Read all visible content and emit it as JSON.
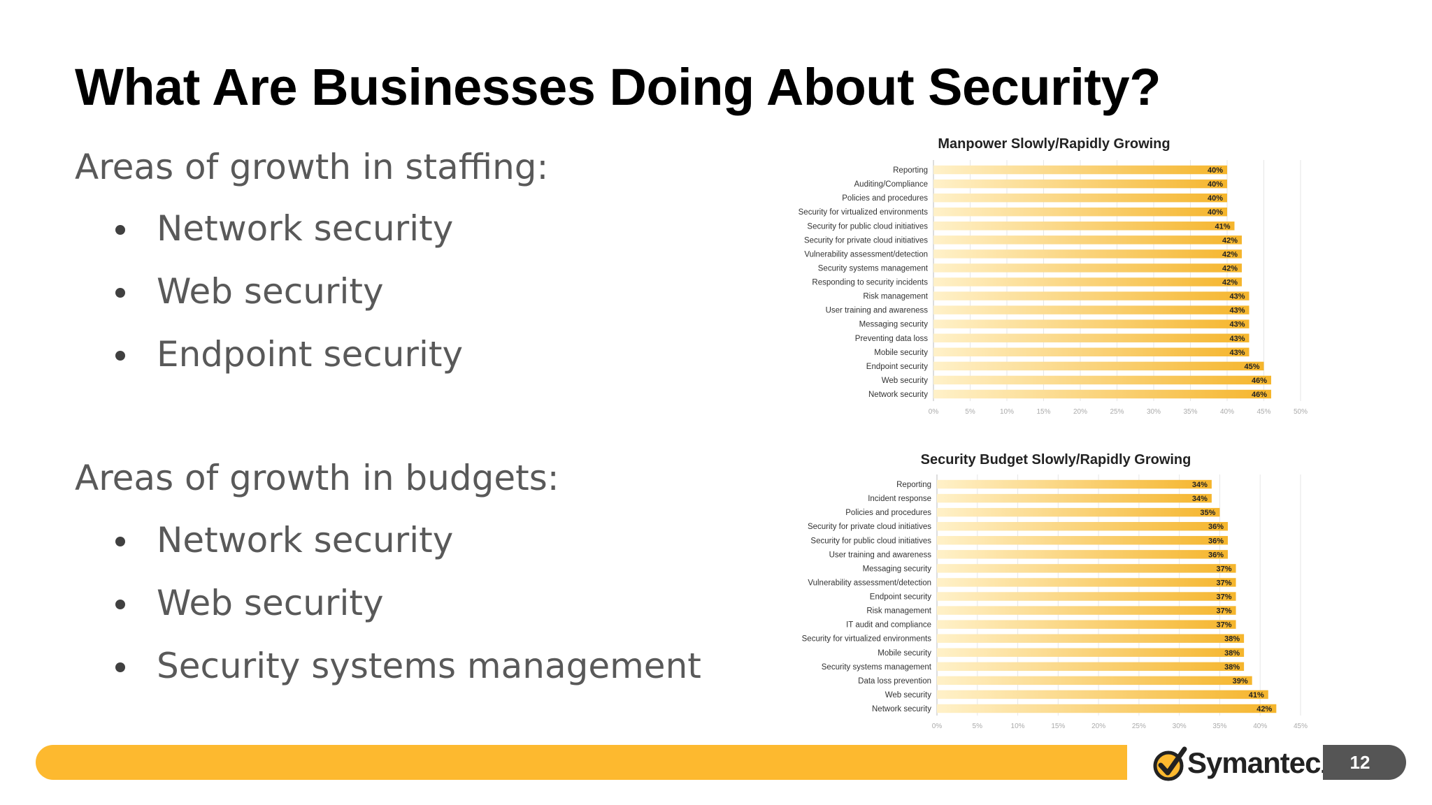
{
  "slide": {
    "title": "What Are Businesses Doing About Security?",
    "page_number": "12",
    "brand": "Symantec",
    "brand_suffix": ".",
    "accent_color": "#FDB92F"
  },
  "staffing": {
    "heading": "Areas of growth in staffing:",
    "bullets": [
      "Network security",
      "Web security",
      "Endpoint security"
    ]
  },
  "budgets": {
    "heading": "Areas of growth in budgets:",
    "bullets": [
      "Network security",
      "Web security",
      "Security systems management"
    ]
  },
  "chart_data": [
    {
      "type": "bar",
      "orientation": "horizontal",
      "title": "Manpower Slowly/Rapidly Growing",
      "categories": [
        "Reporting",
        "Auditing/Compliance",
        "Policies and procedures",
        "Security for virtualized environments",
        "Security for public cloud initiatives",
        "Security for private cloud initiatives",
        "Vulnerability assessment/detection",
        "Security systems management",
        "Responding to security incidents",
        "Risk management",
        "User training and awareness",
        "Messaging security",
        "Preventing data loss",
        "Mobile security",
        "Endpoint security",
        "Web security",
        "Network security"
      ],
      "values": [
        40,
        40,
        40,
        40,
        41,
        42,
        42,
        42,
        42,
        43,
        43,
        43,
        43,
        43,
        45,
        46,
        46
      ],
      "value_labels": [
        "40%",
        "40%",
        "40%",
        "40%",
        "41%",
        "42%",
        "42%",
        "42%",
        "42%",
        "43%",
        "43%",
        "43%",
        "43%",
        "43%",
        "45%",
        "46%",
        "46%"
      ],
      "xlim": [
        0,
        50
      ],
      "xticks": [
        "0%",
        "5%",
        "10%",
        "15%",
        "20%",
        "25%",
        "30%",
        "35%",
        "40%",
        "45%",
        "50%"
      ],
      "grid": true,
      "bar_color": "#F5B52C"
    },
    {
      "type": "bar",
      "orientation": "horizontal",
      "title": "Security Budget Slowly/Rapidly Growing",
      "categories": [
        "Reporting",
        "Incident response",
        "Policies and procedures",
        "Security for private cloud initiatives",
        "Security for public cloud initiatives",
        "User training and awareness",
        "Messaging security",
        "Vulnerability assessment/detection",
        "Endpoint security",
        "Risk management",
        "IT audit and compliance",
        "Security for virtualized environments",
        "Mobile security",
        "Security systems management",
        "Data loss prevention",
        "Web security",
        "Network security"
      ],
      "values": [
        34,
        34,
        35,
        36,
        36,
        36,
        37,
        37,
        37,
        37,
        37,
        38,
        38,
        38,
        39,
        41,
        42
      ],
      "value_labels": [
        "34%",
        "34%",
        "35%",
        "36%",
        "36%",
        "36%",
        "37%",
        "37%",
        "37%",
        "37%",
        "37%",
        "38%",
        "38%",
        "38%",
        "39%",
        "41%",
        "42%"
      ],
      "xlim": [
        0,
        45
      ],
      "xticks": [
        "0%",
        "5%",
        "10%",
        "15%",
        "20%",
        "25%",
        "30%",
        "35%",
        "40%",
        "45%"
      ],
      "grid": true,
      "bar_color": "#F5B52C"
    }
  ]
}
